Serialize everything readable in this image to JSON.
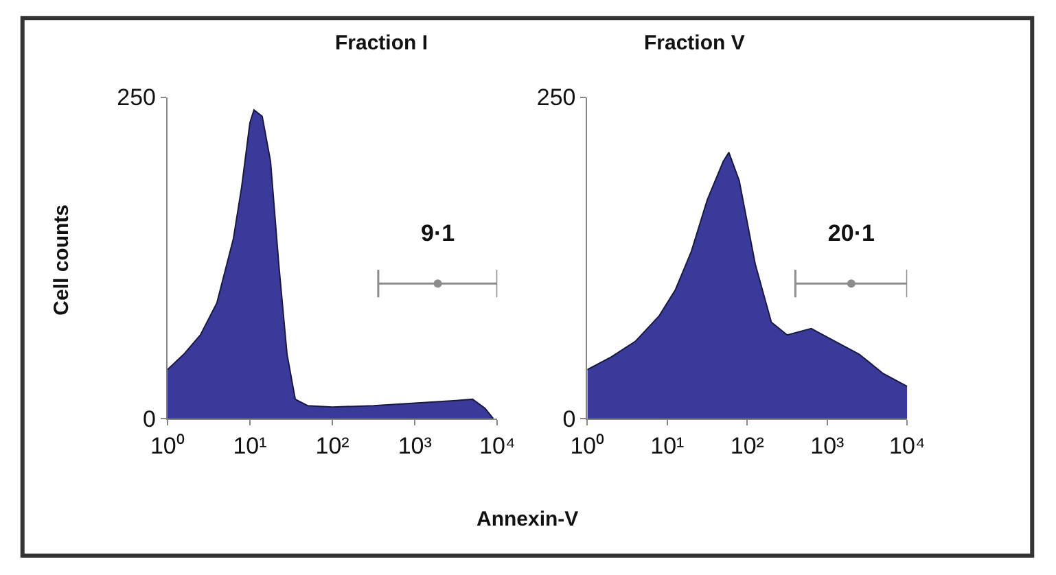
{
  "chart_data": [
    {
      "type": "area",
      "title": "Fraction I",
      "ylabel": "Cell counts",
      "xlabel": "Annexin-V",
      "log": "x",
      "x": [
        1,
        1.58,
        2.51,
        3.98,
        6.31,
        7.94,
        10,
        11.2,
        14.1,
        17.8,
        22.4,
        28.2,
        35.5,
        50.1,
        100,
        316,
        1000,
        3162,
        5012,
        7079,
        8913
      ],
      "series": [
        {
          "color": "#3a3a9a",
          "values": [
            38,
            50,
            65,
            90,
            140,
            180,
            230,
            240,
            235,
            200,
            120,
            50,
            15,
            10,
            9,
            10,
            12,
            14,
            15,
            8,
            0
          ]
        },
        {
          "type": "scatter",
          "marker": "circle",
          "color": "#8c8c8c",
          "x": [
            1897
          ],
          "values": [
            105
          ],
          "xerrors": [
            [
              360,
              10000
            ]
          ],
          "value_labels": [
            "9·1"
          ]
        }
      ],
      "xlim": [
        1,
        10000
      ],
      "ylim": [
        0,
        250
      ],
      "yticks": [
        0,
        250
      ],
      "xticks": [
        {
          "value": 1,
          "label": "10⁰"
        },
        {
          "value": 10,
          "label": "10¹"
        },
        {
          "value": 100,
          "label": "10²"
        },
        {
          "value": 1000,
          "label": "10³"
        },
        {
          "value": 10000,
          "label": "10⁴"
        }
      ]
    },
    {
      "type": "area",
      "title": "Fraction V",
      "log": "x",
      "x": [
        1,
        2,
        3.98,
        7.94,
        12.6,
        20,
        31.6,
        50.1,
        58.9,
        79.4,
        126,
        200,
        316,
        631,
        1259,
        2512,
        5012,
        10000
      ],
      "series": [
        {
          "color": "#3a3a9a",
          "values": [
            38,
            48,
            60,
            80,
            100,
            130,
            170,
            200,
            207,
            185,
            120,
            75,
            65,
            70,
            60,
            50,
            35,
            25
          ]
        },
        {
          "type": "scatter",
          "marker": "circle",
          "color": "#8c8c8c",
          "x": [
            2000
          ],
          "values": [
            105
          ],
          "xerrors": [
            [
              400,
              10000
            ]
          ],
          "value_labels": [
            "20·1"
          ]
        }
      ],
      "xlim": [
        1,
        10000
      ],
      "ylim": [
        0,
        250
      ],
      "yticks": [
        0,
        250
      ],
      "xticks": [
        {
          "value": 1,
          "label": "10⁰"
        },
        {
          "value": 10,
          "label": "10¹"
        },
        {
          "value": 100,
          "label": "10²"
        },
        {
          "value": 1000,
          "label": "10³"
        },
        {
          "value": 10000,
          "label": "10⁴"
        }
      ]
    }
  ]
}
